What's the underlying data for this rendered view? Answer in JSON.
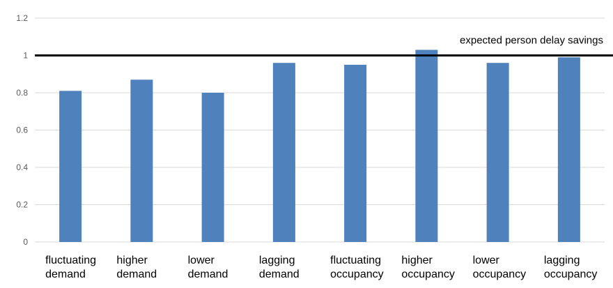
{
  "chart_data": {
    "type": "bar",
    "title": "",
    "xlabel": "",
    "ylabel": "",
    "ylim": [
      0,
      1.2
    ],
    "yticks": [
      "0",
      "0.2",
      "0.4",
      "0.6",
      "0.8",
      "1",
      "1.2"
    ],
    "grid": true,
    "categories": [
      [
        "fluctuating",
        "demand"
      ],
      [
        "higher",
        "demand"
      ],
      [
        "lower",
        "demand"
      ],
      [
        "lagging",
        "demand"
      ],
      [
        "fluctuating",
        "occupancy"
      ],
      [
        "higher",
        "occupancy"
      ],
      [
        "lower",
        "occupancy"
      ],
      [
        "lagging",
        "occupancy"
      ]
    ],
    "values": [
      0.81,
      0.87,
      0.8,
      0.96,
      0.95,
      1.03,
      0.96,
      0.99
    ],
    "bar_color": "#4f81bd",
    "reference_line": {
      "value": 1.0,
      "label": "expected person delay savings",
      "color": "#000000"
    }
  }
}
